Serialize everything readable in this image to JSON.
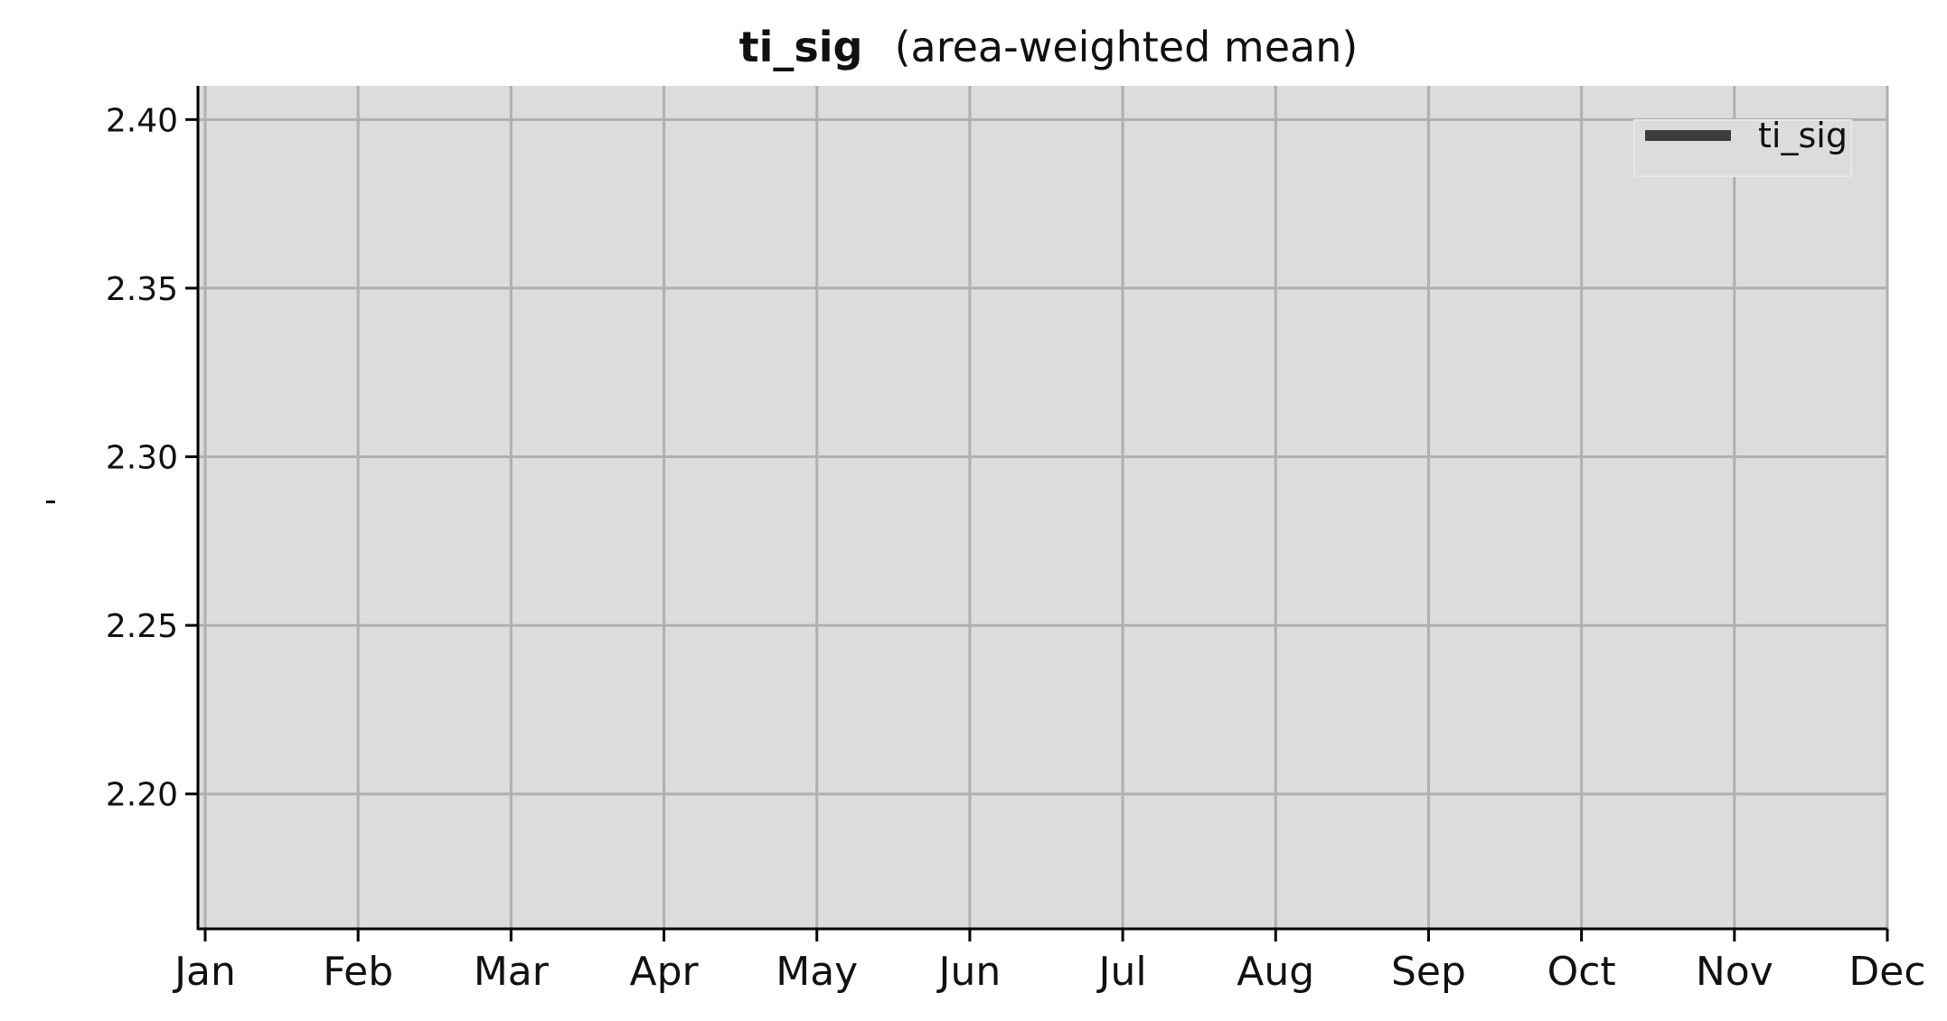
{
  "chart_data": {
    "type": "line",
    "title": "ti_sig",
    "subtitle": "(area-weighted mean)",
    "xlabel": "",
    "ylabel": "-",
    "x_tick_labels": [
      "Jan",
      "Feb",
      "Mar",
      "Apr",
      "May",
      "Jun",
      "Jul",
      "Aug",
      "Sep",
      "Oct",
      "Nov",
      "Dec"
    ],
    "y_tick_labels": [
      "2.20",
      "2.25",
      "2.30",
      "2.35",
      "2.40"
    ],
    "y_ticks": [
      2.2,
      2.25,
      2.3,
      2.35,
      2.4
    ],
    "ylim": [
      2.16,
      2.41
    ],
    "grid": true,
    "legend_position": "top-right",
    "series": [
      {
        "name": "ti_sig",
        "x": [],
        "values": [],
        "color": "#3d3d3d"
      }
    ],
    "colors": {
      "plot_background": "#dcdcdc",
      "grid": "#b0b0b0",
      "axis": "#000000"
    }
  }
}
